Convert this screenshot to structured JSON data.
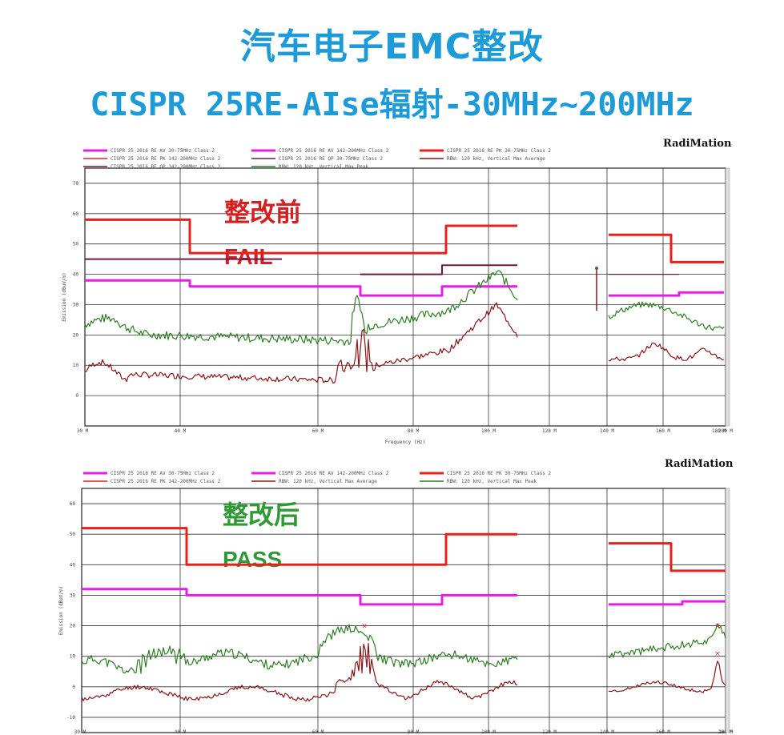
{
  "title_line1": "汽车电子EMC整改",
  "title_line2": "CISPR 25RE-AIse辐射-30MHz~200MHz",
  "colors": {
    "title": "#1d9bd8",
    "limit_peak": "#e8201c",
    "limit_avg": "#e61de6",
    "limit_qp": "#6b1a3f",
    "peak_trace": "#2e7d25",
    "avg_trace": "#8b1414",
    "fail": "#d42020",
    "pass": "#2f9a35"
  },
  "chart_data": [
    {
      "type": "line",
      "brand": "RadiMation",
      "annotation_cn": "整改前",
      "annotation_status": "FAIL",
      "xlabel": "Frequency (Hz)",
      "ylabel": "Emission (dBuV/m)",
      "x_ticks": [
        "30 M",
        "40 M",
        "60 M",
        "80 M",
        "100 M",
        "120 M",
        "140 M",
        "160 M",
        "180 M",
        "200 M"
      ],
      "y_ticks": [
        "70",
        "60",
        "50",
        "40",
        "30",
        "20",
        "10",
        "0"
      ],
      "ylim": [
        -10,
        75
      ],
      "legend": [
        {
          "label": "CISPR 25 2016 RE AV 30-75MHz Class 2",
          "color": "#e61de6"
        },
        {
          "label": "CISPR 25 2016 RE AV 142-200MHz Class 2",
          "color": "#e61de6"
        },
        {
          "label": "CISPR 25 2016 RE PK 30-75MHz Class 2",
          "color": "#e8201c"
        },
        {
          "label": "CISPR 25 2016 RE PK 142-200MHz Class 2",
          "color": "#e8201c"
        },
        {
          "label": "CISPR 25 2016 RE QP 30-75MHz Class 2",
          "color": "#6b1a3f"
        },
        {
          "label": "RBW: 120 kHz, Vertical Max Average",
          "color": "#8b1414"
        },
        {
          "label": "CISPR 25 2016 RE QP 142-200MHz Class 2",
          "color": "#6b1a3f"
        },
        {
          "label": "RBW: 120 kHz, Vertical Max Peak",
          "color": "#2e7d25"
        }
      ]
    },
    {
      "type": "line",
      "brand": "RadiMation",
      "annotation_cn": "整改后",
      "annotation_status": "PASS",
      "xlabel": "",
      "ylabel": "Emission (dBuV/m)",
      "x_ticks": [
        "30 M",
        "40 M",
        "60 M",
        "80 M",
        "100 M",
        "120 M",
        "140 M",
        "160 M",
        "180 M",
        "200 M"
      ],
      "y_ticks": [
        "60",
        "50",
        "40",
        "30",
        "20",
        "10",
        "0",
        "-10"
      ],
      "ylim": [
        -15,
        65
      ],
      "legend": [
        {
          "label": "CISPR 25 2016 RE AV 30-75MHz Class 2",
          "color": "#e61de6"
        },
        {
          "label": "CISPR 25 2016 RE AV 142-200MHz Class 2",
          "color": "#e61de6"
        },
        {
          "label": "CISPR 25 2016 RE PK 30-75MHz Class 2",
          "color": "#e8201c"
        },
        {
          "label": "CISPR 25 2016 RE PK 142-200MHz Class 2",
          "color": "#e8201c"
        },
        {
          "label": "RBW: 120 kHz, Vertical Max Average",
          "color": "#8b1414"
        },
        {
          "label": "RBW: 120 kHz, Vertical Max Peak",
          "color": "#2e7d25"
        }
      ]
    }
  ]
}
